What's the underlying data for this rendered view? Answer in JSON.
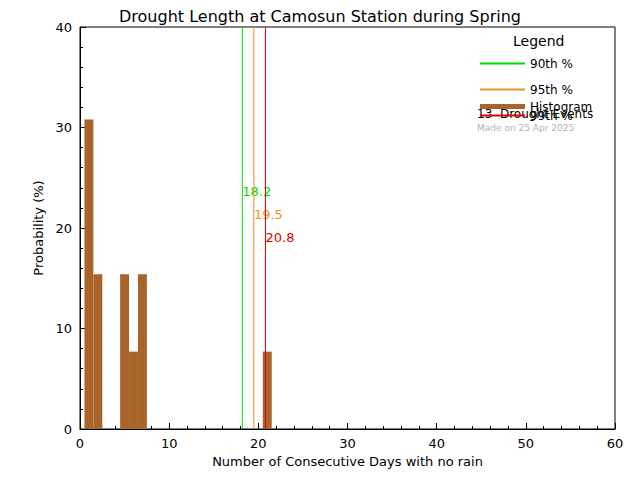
{
  "chart_data": {
    "type": "histogram",
    "title": "Drought Length at Camosun Station during Spring",
    "x_label": "Number of Consecutive Days with no rain",
    "y_label": "Probability (%)",
    "name": "Histogram",
    "color": "#a9642c",
    "bins": [
      0.5,
      1.5,
      2.5,
      3.5,
      4.5,
      5.5,
      6.5,
      7.5,
      8.5,
      9.5,
      10.5,
      11.5,
      12.5,
      13.5,
      14.5,
      15.5,
      16.5,
      17.5,
      18.5,
      19.5,
      20.5,
      21.5
    ],
    "values": [
      30.8,
      15.4,
      0,
      0,
      15.4,
      7.7,
      15.4,
      0,
      0,
      0,
      0,
      0,
      0,
      0,
      0,
      0,
      0,
      0,
      0,
      0,
      7.7
    ],
    "lines": [
      {
        "name": "90th %",
        "value": 18.2,
        "color": "#00dd00"
      },
      {
        "name": "95th %",
        "value": 19.5,
        "color": "#f09020"
      },
      {
        "name": "99th %",
        "value": 20.8,
        "color": "#dd0000"
      }
    ],
    "legend_title": "Legend",
    "annotations": [
      "13  Drought Events",
      "Made on 25 Apr 2025"
    ],
    "legend": "upper right",
    "xlim": [
      0,
      60
    ],
    "xticks": [
      0,
      10,
      20,
      30,
      40,
      50,
      60
    ],
    "ylim": [
      0,
      40
    ],
    "yticks": [
      0,
      10,
      20,
      30,
      40
    ],
    "grid": false
  }
}
